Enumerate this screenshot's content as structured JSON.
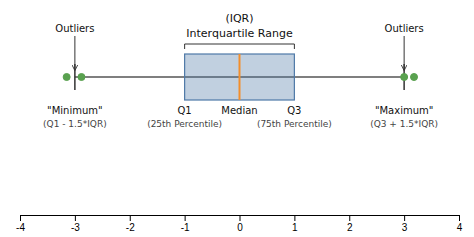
{
  "chart_data": {
    "type": "box",
    "orientation": "horizontal",
    "title": "Interquartile Range",
    "subtitle": "(IQR)",
    "q1": -1,
    "median": 0,
    "q3": 1,
    "whisker_low": -3,
    "whisker_high": 3,
    "outliers": [
      -3.15,
      -2.88,
      3.0,
      3.18
    ],
    "outlier_label": "Outliers",
    "labels": {
      "q1": [
        "Q1",
        "(25th Percentile)"
      ],
      "median": [
        "Median"
      ],
      "q3": [
        "Q3",
        "(75th Percentile)"
      ],
      "whisker_low": [
        "\"Minimum\"",
        "(Q1 - 1.5*IQR)"
      ],
      "whisker_high": [
        "\"Maximum\"",
        "(Q3 + 1.5*IQR)"
      ]
    },
    "xlim": [
      -4,
      4
    ],
    "xticks": [
      -4,
      -3,
      -2,
      -1,
      0,
      1,
      2,
      3,
      4
    ],
    "grid": false,
    "legend": false
  }
}
